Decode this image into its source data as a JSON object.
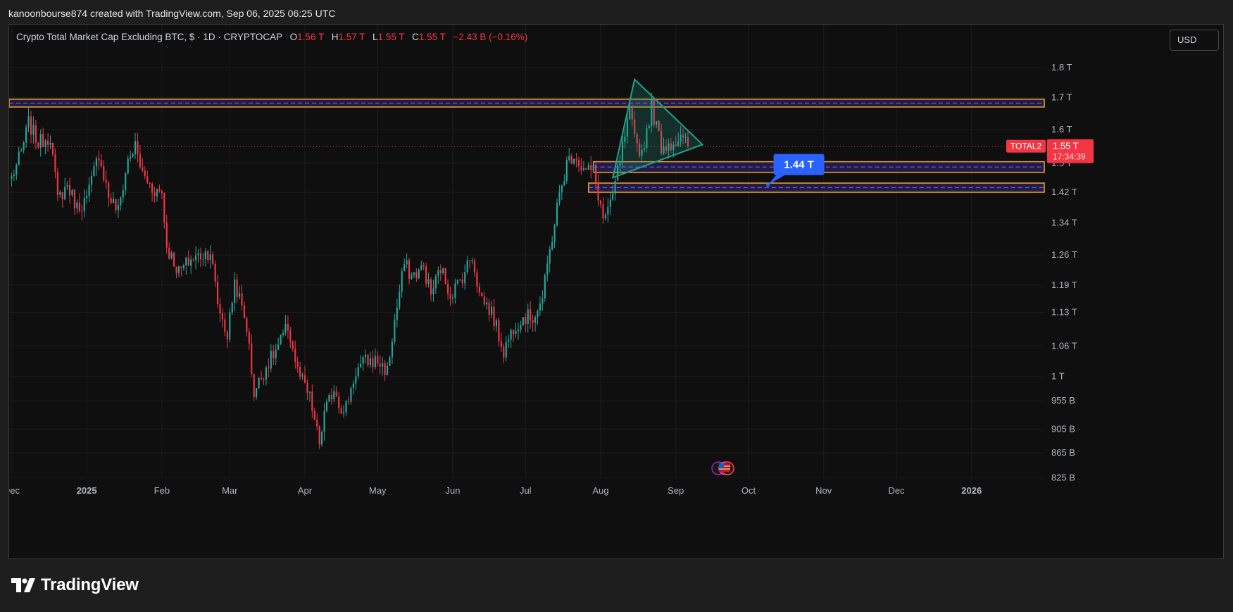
{
  "header": {
    "attribution": "kanoonbourse874 created with TradingView.com, Sep 06, 2025 06:25 UTC"
  },
  "legend": {
    "title": "Crypto Total Market Cap Excluding BTC, $ · 1D · CRYPTOCAP",
    "open_label": "O",
    "open": "1.56 T",
    "high_label": "H",
    "high": "1.57 T",
    "low_label": "L",
    "low": "1.55 T",
    "close_label": "C",
    "close": "1.55 T",
    "change": "−2.43 B (−0.16%)"
  },
  "currency": "USD",
  "footer": {
    "brand": "TradingView"
  },
  "colors": {
    "up": "#26a69a",
    "down": "#f23645",
    "zone_border": "#f5a623",
    "zone_fill": "#2a1f5c",
    "triangle": "#1fa38a",
    "callout": "#2962ff"
  },
  "chart_data": {
    "type": "candlestick",
    "y_scale": "log",
    "y_ticks": [
      "1.8 T",
      "1.7 T",
      "1.6 T",
      "1.5 T",
      "1.42 T",
      "1.34 T",
      "1.26 T",
      "1.19 T",
      "1.13 T",
      "1.06 T",
      "1 T",
      "955 B",
      "905 B",
      "865 B",
      "825 B"
    ],
    "y_tick_values": [
      1.8,
      1.7,
      1.6,
      1.5,
      1.42,
      1.34,
      1.26,
      1.19,
      1.13,
      1.06,
      1.0,
      0.955,
      0.905,
      0.865,
      0.825
    ],
    "x_labels": [
      "Dec",
      "2025",
      "Feb",
      "Mar",
      "Apr",
      "May",
      "Jun",
      "Jul",
      "Aug",
      "Sep",
      "Oct",
      "Nov",
      "Dec",
      "2026"
    ],
    "x_range": [
      "2024-11-30",
      "2026-01-31"
    ],
    "last_date": "2025-09-06",
    "symbol_badge": "TOTAL2",
    "last_price": "1.55 T",
    "countdown": "17:34:39",
    "last_value": 1.55,
    "waypoints": [
      [
        "2024-12-01",
        1.46
      ],
      [
        "2024-12-05",
        1.53
      ],
      [
        "2024-12-08",
        1.62
      ],
      [
        "2024-12-12",
        1.56
      ],
      [
        "2024-12-17",
        1.58
      ],
      [
        "2024-12-20",
        1.4
      ],
      [
        "2024-12-24",
        1.44
      ],
      [
        "2024-12-28",
        1.38
      ],
      [
        "2025-01-01",
        1.4
      ],
      [
        "2025-01-06",
        1.53
      ],
      [
        "2025-01-10",
        1.41
      ],
      [
        "2025-01-14",
        1.37
      ],
      [
        "2025-01-18",
        1.51
      ],
      [
        "2025-01-21",
        1.55
      ],
      [
        "2025-01-24",
        1.47
      ],
      [
        "2025-01-28",
        1.43
      ],
      [
        "2025-02-01",
        1.42
      ],
      [
        "2025-02-03",
        1.28
      ],
      [
        "2025-02-08",
        1.22
      ],
      [
        "2025-02-13",
        1.25
      ],
      [
        "2025-02-17",
        1.26
      ],
      [
        "2025-02-21",
        1.27
      ],
      [
        "2025-02-24",
        1.15
      ],
      [
        "2025-02-28",
        1.08
      ],
      [
        "2025-03-03",
        1.2
      ],
      [
        "2025-03-08",
        1.1
      ],
      [
        "2025-03-11",
        0.97
      ],
      [
        "2025-03-16",
        1.02
      ],
      [
        "2025-03-20",
        1.05
      ],
      [
        "2025-03-25",
        1.1
      ],
      [
        "2025-03-29",
        1.01
      ],
      [
        "2025-04-03",
        0.96
      ],
      [
        "2025-04-07",
        0.88
      ],
      [
        "2025-04-09",
        0.93
      ],
      [
        "2025-04-13",
        0.98
      ],
      [
        "2025-04-17",
        0.93
      ],
      [
        "2025-04-22",
        1.01
      ],
      [
        "2025-04-26",
        1.03
      ],
      [
        "2025-05-01",
        1.03
      ],
      [
        "2025-05-05",
        1.01
      ],
      [
        "2025-05-08",
        1.11
      ],
      [
        "2025-05-12",
        1.24
      ],
      [
        "2025-05-15",
        1.21
      ],
      [
        "2025-05-20",
        1.23
      ],
      [
        "2025-05-23",
        1.17
      ],
      [
        "2025-05-27",
        1.23
      ],
      [
        "2025-05-31",
        1.17
      ],
      [
        "2025-06-04",
        1.2
      ],
      [
        "2025-06-09",
        1.26
      ],
      [
        "2025-06-12",
        1.17
      ],
      [
        "2025-06-17",
        1.13
      ],
      [
        "2025-06-22",
        1.05
      ],
      [
        "2025-06-26",
        1.1
      ],
      [
        "2025-06-30",
        1.12
      ],
      [
        "2025-07-04",
        1.12
      ],
      [
        "2025-07-08",
        1.16
      ],
      [
        "2025-07-11",
        1.27
      ],
      [
        "2025-07-14",
        1.38
      ],
      [
        "2025-07-18",
        1.5
      ],
      [
        "2025-07-21",
        1.53
      ],
      [
        "2025-07-25",
        1.48
      ],
      [
        "2025-07-29",
        1.48
      ],
      [
        "2025-08-02",
        1.35
      ],
      [
        "2025-08-05",
        1.38
      ],
      [
        "2025-08-09",
        1.51
      ],
      [
        "2025-08-13",
        1.65
      ],
      [
        "2025-08-15",
        1.57
      ],
      [
        "2025-08-18",
        1.53
      ],
      [
        "2025-08-22",
        1.67
      ],
      [
        "2025-08-26",
        1.55
      ],
      [
        "2025-08-30",
        1.56
      ],
      [
        "2025-09-03",
        1.57
      ],
      [
        "2025-09-06",
        1.55
      ]
    ],
    "zones": [
      {
        "from": "2024-11-30",
        "to": "2026-01-31",
        "low": 1.67,
        "high": 1.695
      },
      {
        "from": "2025-07-29",
        "to": "2026-01-31",
        "low": 1.475,
        "high": 1.505
      },
      {
        "from": "2025-07-27",
        "to": "2026-01-31",
        "low": 1.42,
        "high": 1.445
      }
    ],
    "triangle": [
      [
        "2025-08-15",
        1.76
      ],
      [
        "2025-09-12",
        1.555
      ],
      [
        "2025-08-06",
        1.46
      ]
    ],
    "callout": {
      "label": "1.44 T",
      "date": "2025-10-09",
      "value": 1.44
    }
  }
}
